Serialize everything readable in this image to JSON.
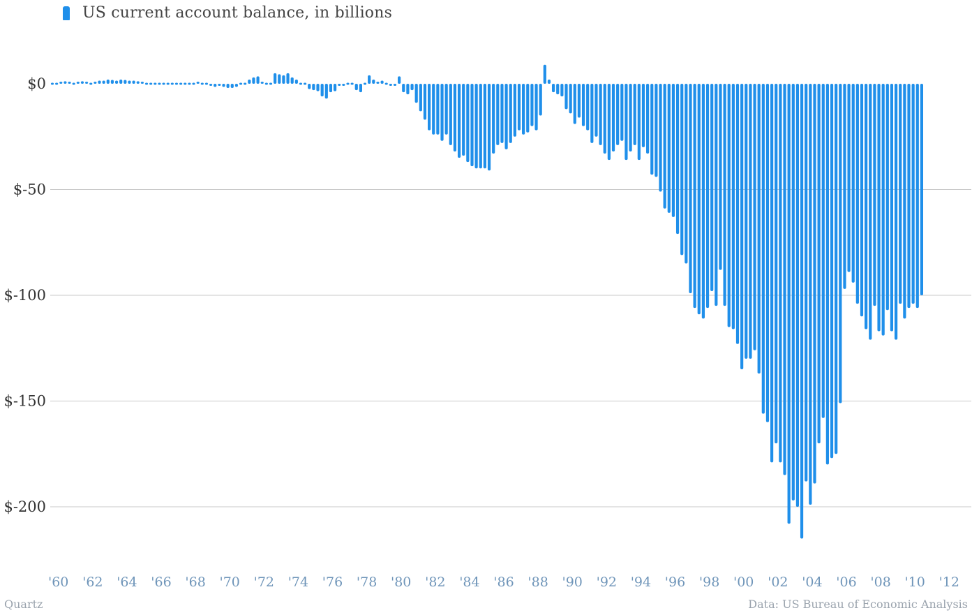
{
  "colors": {
    "bar": "#1f8fea",
    "grid": "#c8c8c8",
    "ytick": "#333333",
    "xtick": "#6f95b9"
  },
  "legend": {
    "icon": "bar-swatch-icon",
    "label": "US current account balance, in billions"
  },
  "footer": {
    "source_left": "Quartz",
    "source_right": "Data: US Bureau of Economic Analysis"
  },
  "chart_data": {
    "type": "bar",
    "title": "",
    "xlabel": "",
    "ylabel": "",
    "ylim": [
      -220,
      10
    ],
    "grid": true,
    "legend_position": "top-left",
    "y_ticks": [
      {
        "value": 0,
        "label": "$0"
      },
      {
        "value": -50,
        "label": "$-50"
      },
      {
        "value": -100,
        "label": "$-100"
      },
      {
        "value": -150,
        "label": "$-150"
      },
      {
        "value": -200,
        "label": "$-200"
      }
    ],
    "x_ticks": [
      {
        "year": 1960,
        "label": "'60"
      },
      {
        "year": 1962,
        "label": "'62"
      },
      {
        "year": 1964,
        "label": "'64"
      },
      {
        "year": 1966,
        "label": "'66"
      },
      {
        "year": 1968,
        "label": "'68"
      },
      {
        "year": 1970,
        "label": "'70"
      },
      {
        "year": 1972,
        "label": "'72"
      },
      {
        "year": 1974,
        "label": "'74"
      },
      {
        "year": 1976,
        "label": "'76"
      },
      {
        "year": 1978,
        "label": "'78"
      },
      {
        "year": 1980,
        "label": "'80"
      },
      {
        "year": 1982,
        "label": "'82"
      },
      {
        "year": 1984,
        "label": "'84"
      },
      {
        "year": 1986,
        "label": "'86"
      },
      {
        "year": 1988,
        "label": "'88"
      },
      {
        "year": 1990,
        "label": "'90"
      },
      {
        "year": 1992,
        "label": "'92"
      },
      {
        "year": 1994,
        "label": "'94"
      },
      {
        "year": 1996,
        "label": "'96"
      },
      {
        "year": 1998,
        "label": "'98"
      },
      {
        "year": 2000,
        "label": "'00"
      },
      {
        "year": 2002,
        "label": "'02"
      },
      {
        "year": 2004,
        "label": "'04"
      },
      {
        "year": 2006,
        "label": "'06"
      },
      {
        "year": 2008,
        "label": "'08"
      },
      {
        "year": 2010,
        "label": "'10"
      },
      {
        "year": 2012,
        "label": "'12"
      }
    ],
    "x_start": "1960 Q1",
    "x_frequency": "quarterly",
    "series": [
      {
        "name": "US current account balance, in billions",
        "values": [
          0.5,
          0.8,
          1.0,
          1.2,
          1.0,
          0.8,
          1.0,
          1.2,
          1.0,
          0.8,
          1.0,
          1.5,
          1.5,
          2.0,
          1.8,
          1.5,
          2.0,
          1.8,
          1.5,
          1.5,
          1.2,
          1.0,
          0.5,
          0.8,
          0.5,
          0.5,
          0.3,
          0.0,
          0.0,
          -0.3,
          -0.3,
          -0.3,
          0.0,
          0.5,
          1.0,
          0.5,
          -0.5,
          -1.0,
          -1.5,
          -1.0,
          -1.5,
          -2.0,
          -2.0,
          -1.5,
          0.0,
          0.5,
          2.0,
          3.0,
          3.5,
          1.0,
          -0.5,
          0.5,
          5.0,
          4.5,
          4.0,
          5.0,
          3.0,
          2.0,
          0.5,
          -0.5,
          -2.5,
          -3.0,
          -3.5,
          -6.0,
          -7.0,
          -4.0,
          -3.5,
          -1.0,
          -1.0,
          0.0,
          -0.5,
          -3.0,
          -4.0,
          0.0,
          4.0,
          2.0,
          1.0,
          1.5,
          0.5,
          -1.0,
          -1.0,
          3.5,
          -4.0,
          -5.0,
          -3.0,
          -9.0,
          -13.0,
          -17.0,
          -22.0,
          -24.0,
          -24.0,
          -27.0,
          -24.0,
          -29.0,
          -32.0,
          -35.0,
          -34.0,
          -37.0,
          -39.0,
          -40.0,
          -40.0,
          -40.0,
          -41.0,
          -33.0,
          -29.0,
          -28.0,
          -31.0,
          -28.0,
          -25.0,
          -22.0,
          -24.0,
          -23.0,
          -20.0,
          -22.0,
          -15.0,
          9.0,
          2.0,
          -4.0,
          -5.0,
          -6.0,
          -12.0,
          -14.0,
          -19.0,
          -16.0,
          -20.0,
          -22.0,
          -28.0,
          -25.0,
          -29.0,
          -33.0,
          -36.0,
          -32.0,
          -29.0,
          -27.0,
          -36.0,
          -32.0,
          -29.0,
          -36.0,
          -30.0,
          -33.0,
          -43.0,
          -44.0,
          -51.0,
          -59.0,
          -61.0,
          -63.0,
          -71.0,
          -81.0,
          -85.0,
          -99.0,
          -106.0,
          -109.0,
          -111.0,
          -106.0,
          -98.0,
          -105.0,
          -88.0,
          -105.0,
          -115.0,
          -116.0,
          -123.0,
          -135.0,
          -130.0,
          -130.0,
          -126.0,
          -137.0,
          -156.0,
          -160.0,
          -179.0,
          -170.0,
          -179.0,
          -185.0,
          -208.0,
          -197.0,
          -200.0,
          -215.0,
          -188.0,
          -199.0,
          -189.0,
          -170.0,
          -158.0,
          -180.0,
          -177.0,
          -175.0,
          -151.0,
          -97.0,
          -89.0,
          -94.0,
          -104.0,
          -110.0,
          -116.0,
          -121.0,
          -105.0,
          -117.0,
          -119.0,
          -107.0,
          -117.0,
          -121.0,
          -104.0,
          -111.0,
          -106.0,
          -104.0,
          -106.0,
          -100.0
        ]
      }
    ]
  }
}
